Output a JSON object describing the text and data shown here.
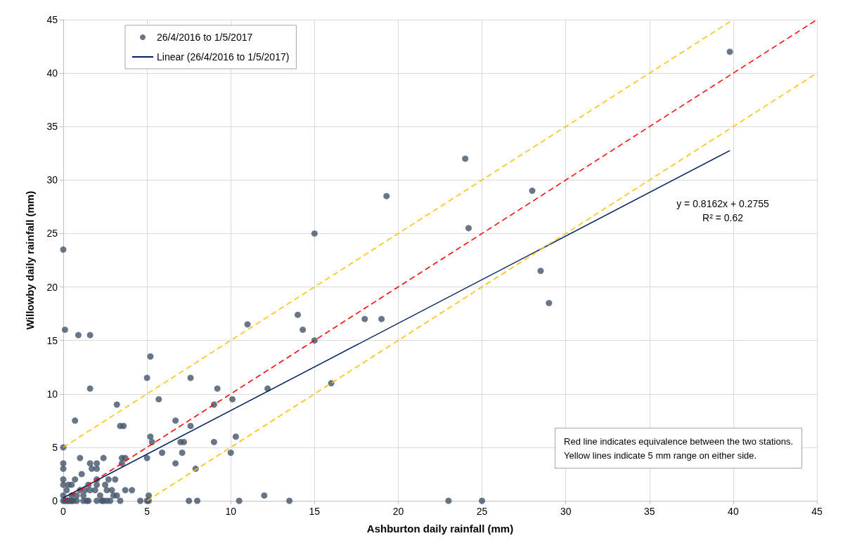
{
  "chart_data": {
    "type": "scatter",
    "xlabel": "Ashburton daily rainfall (mm)",
    "ylabel": "Willowby daily rainfall (mm)",
    "xlim": [
      0,
      45
    ],
    "ylim": [
      0,
      45
    ],
    "xticks": [
      0,
      5,
      10,
      15,
      20,
      25,
      30,
      35,
      40,
      45
    ],
    "yticks": [
      0,
      5,
      10,
      15,
      20,
      25,
      30,
      35,
      40,
      45
    ],
    "grid": true,
    "legend": "top left",
    "series": [
      {
        "name": "26/4/2016 to 1/5/2017",
        "marker": "circle",
        "color": "#44546a",
        "x": [
          39.8,
          24,
          19.3,
          28,
          24.2,
          15,
          0,
          28.5,
          29,
          14,
          18,
          19,
          0.1,
          11,
          14.3,
          0.9,
          1.6,
          15,
          5.2,
          5,
          7.6,
          16,
          1.6,
          9.2,
          12.2,
          5.7,
          10.1,
          3.2,
          9,
          0.7,
          6.7,
          3.4,
          3.6,
          7.6,
          5.2,
          10.3,
          5.3,
          7,
          7.2,
          9,
          0,
          5.9,
          7.1,
          10,
          3.5,
          3.7,
          5,
          2.4,
          1,
          6.7,
          7.9,
          0,
          1.6,
          2,
          3.5,
          1.7,
          2,
          0,
          0.7,
          2,
          2.7,
          3.1,
          0,
          1.1,
          0,
          0.2,
          0.4,
          0.6,
          0.8,
          1.2,
          1.5,
          2,
          2.3,
          2.6,
          3.4,
          4.6,
          5,
          5.1,
          7.5,
          8,
          10.5,
          13.5,
          23,
          25,
          12,
          5.1,
          0,
          0.3,
          0.5,
          1.5,
          2,
          2.5,
          3.7,
          4.1,
          2.6,
          2.9,
          0.2,
          1,
          1.3,
          1.6,
          1.9,
          0,
          0.5,
          0.8,
          1.2,
          3,
          3.2,
          2.2,
          0.1,
          0.3,
          0.5,
          1.4,
          2.4,
          2.8
        ],
        "values": [
          42,
          32,
          28.5,
          29,
          25.5,
          25,
          23.5,
          21.5,
          18.5,
          17.4,
          17,
          17,
          16,
          16.5,
          16,
          15.5,
          15.5,
          15,
          13.5,
          11.5,
          11.5,
          11,
          10.5,
          10.5,
          10.5,
          9.5,
          9.5,
          9,
          9,
          7.5,
          7.5,
          7,
          7,
          7,
          6,
          6,
          5.5,
          5.5,
          5.5,
          5.5,
          5,
          4.5,
          4.5,
          4.5,
          4,
          4,
          4,
          4,
          4,
          3.5,
          3,
          3.5,
          3.5,
          3.5,
          3.5,
          3,
          3,
          3,
          2,
          2,
          2,
          2,
          2,
          2.5,
          0,
          0,
          0,
          0,
          0,
          0,
          0,
          0,
          0,
          0,
          0,
          0,
          0,
          0,
          0,
          0,
          0,
          0,
          0,
          0,
          0.5,
          0.5,
          1.5,
          1.5,
          1.5,
          1.5,
          1.5,
          1.5,
          1,
          1,
          1,
          1,
          1,
          1,
          1,
          1,
          1,
          0.5,
          0.5,
          0.5,
          0.5,
          0.5,
          0.5,
          0.5,
          0,
          0,
          0,
          0,
          0,
          0
        ]
      },
      {
        "name": "Linear (26/4/2016 to 1/5/2017)",
        "type": "line",
        "marker": "none",
        "color": "#002060",
        "line_style": "solid",
        "x": [
          0,
          39.8
        ],
        "values": [
          0.28,
          32.76
        ]
      },
      {
        "type": "line",
        "marker": "none",
        "color": "#ff0000",
        "line_style": "dashed",
        "x": [
          0,
          45
        ],
        "values": [
          0,
          45
        ]
      },
      {
        "type": "line",
        "marker": "none",
        "color": "#ffc000",
        "line_style": "dashed",
        "x": [
          0,
          40
        ],
        "values": [
          5,
          45
        ]
      },
      {
        "type": "line",
        "marker": "none",
        "color": "#ffc000",
        "line_style": "dashed",
        "x": [
          5,
          45
        ],
        "values": [
          0,
          40
        ]
      }
    ],
    "annotations": [
      "y = 0.8162x + 0.2755\nR² = 0.62",
      "Red line indicates equivalence between the two stations.\nYellow lines indicate 5 mm range on either side."
    ]
  }
}
